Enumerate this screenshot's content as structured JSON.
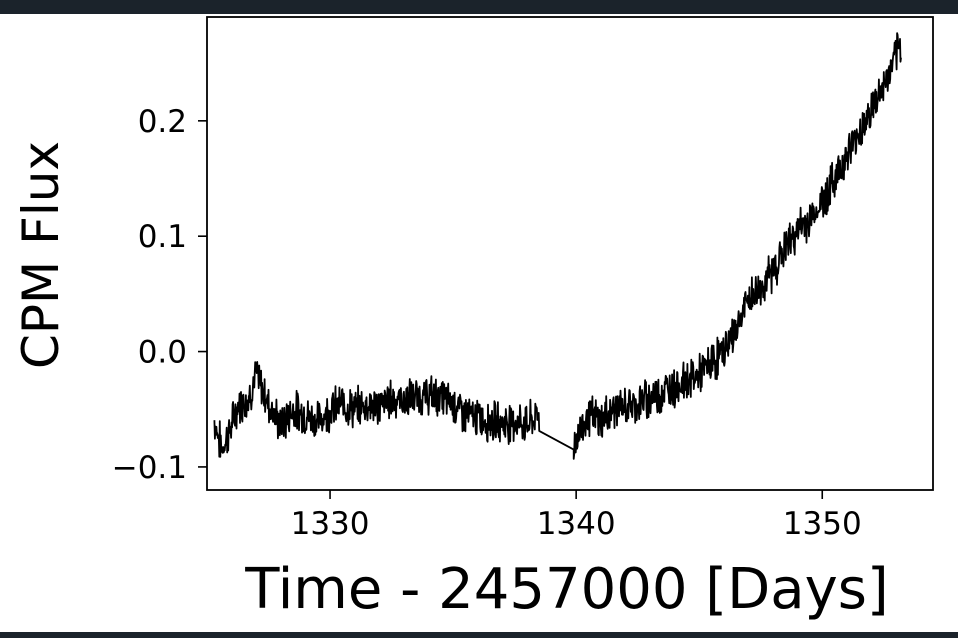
{
  "chart_data": {
    "type": "line",
    "title": "",
    "xlabel": "Time - 2457000 [Days]",
    "ylabel": "CPM Flux",
    "xlim": [
      1325.0,
      1354.5
    ],
    "ylim": [
      -0.12,
      0.29
    ],
    "xticks": [
      1330,
      1340,
      1350
    ],
    "xtick_labels": [
      "1330",
      "1340",
      "1350"
    ],
    "yticks": [
      -0.1,
      0.0,
      0.1,
      0.2
    ],
    "ytick_labels": [
      "−0.1",
      "0.0",
      "0.1",
      "0.2"
    ],
    "grid": false,
    "legend": "none",
    "line_color": "#000000",
    "series": [
      {
        "x": [
          1325.3,
          1325.6,
          1325.9,
          1326.3,
          1326.7,
          1327.0,
          1327.5,
          1328.0,
          1328.5,
          1329.0,
          1329.5,
          1330.0,
          1330.5,
          1331.0,
          1331.5,
          1332.0,
          1332.5,
          1333.0,
          1333.5,
          1334.0,
          1334.5,
          1335.0,
          1335.5,
          1336.0,
          1336.5,
          1337.0,
          1337.5,
          1338.0,
          1338.5,
          1339.2,
          1339.9,
          1340.1,
          1340.5,
          1341.0,
          1341.5,
          1342.0,
          1342.5,
          1343.0,
          1343.5,
          1344.0,
          1344.5,
          1345.0,
          1345.5,
          1346.0,
          1346.5,
          1347.0,
          1347.5,
          1348.0,
          1348.5,
          1349.0,
          1349.5,
          1350.0,
          1350.5,
          1351.0,
          1351.5,
          1352.0,
          1352.5,
          1353.0,
          1353.2
        ],
        "y": [
          -0.06,
          -0.085,
          -0.07,
          -0.045,
          -0.04,
          -0.02,
          -0.045,
          -0.065,
          -0.05,
          -0.055,
          -0.06,
          -0.05,
          -0.045,
          -0.05,
          -0.045,
          -0.048,
          -0.04,
          -0.042,
          -0.04,
          -0.038,
          -0.04,
          -0.045,
          -0.055,
          -0.058,
          -0.06,
          -0.062,
          -0.06,
          -0.063,
          -0.055,
          -0.07,
          -0.085,
          -0.07,
          -0.055,
          -0.06,
          -0.05,
          -0.048,
          -0.045,
          -0.04,
          -0.035,
          -0.03,
          -0.025,
          -0.02,
          -0.01,
          0.0,
          0.02,
          0.045,
          0.055,
          0.07,
          0.09,
          0.105,
          0.115,
          0.13,
          0.15,
          0.17,
          0.19,
          0.21,
          0.23,
          0.255,
          0.265
        ]
      }
    ]
  }
}
